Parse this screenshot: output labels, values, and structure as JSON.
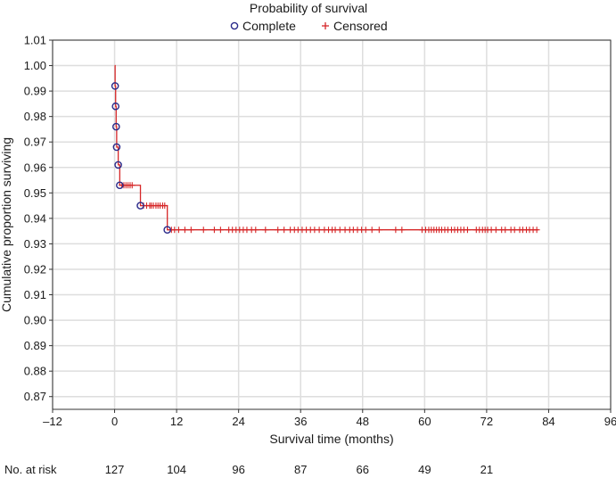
{
  "chart_data": {
    "type": "line",
    "title": "Probability of survival",
    "xlabel": "Survival time (months)",
    "ylabel": "Cumulative proportion surviving",
    "xlim": [
      -12,
      96
    ],
    "ylim": [
      0.865,
      1.01
    ],
    "x_ticks": [
      -12,
      0,
      12,
      24,
      36,
      48,
      60,
      72,
      84,
      96
    ],
    "x_tick_labels": [
      "–12",
      "0",
      "12",
      "24",
      "36",
      "48",
      "60",
      "72",
      "84",
      "96"
    ],
    "y_ticks": [
      0.87,
      0.88,
      0.89,
      0.9,
      0.91,
      0.92,
      0.93,
      0.94,
      0.95,
      0.96,
      0.97,
      0.98,
      0.99,
      1.0,
      1.01
    ],
    "y_tick_labels": [
      "0.87",
      "0.88",
      "0.89",
      "0.90",
      "0.91",
      "0.92",
      "0.93",
      "0.94",
      "0.95",
      "0.96",
      "0.97",
      "0.98",
      "0.99",
      "1.00",
      "1.01"
    ],
    "grid": true,
    "legend": {
      "position": "top",
      "entries": [
        {
          "label": "Complete",
          "marker": "circle"
        },
        {
          "label": "Censored",
          "marker": "plus"
        }
      ]
    },
    "series": [
      {
        "name": "Survival curve",
        "step": true,
        "color": "#d62728",
        "x": [
          0,
          0.1,
          0.2,
          0.3,
          0.4,
          0.7,
          1.0,
          5.0,
          10.2,
          82
        ],
        "y": [
          1.0,
          0.992,
          0.984,
          0.976,
          0.968,
          0.961,
          0.953,
          0.945,
          0.9355,
          0.9355
        ]
      },
      {
        "name": "Complete",
        "marker": "circle",
        "color": "#2a2a8a",
        "x": [
          0.1,
          0.2,
          0.3,
          0.4,
          0.7,
          1.0,
          5.0,
          10.2
        ],
        "y": [
          0.992,
          0.984,
          0.976,
          0.968,
          0.961,
          0.953,
          0.945,
          0.9355
        ]
      },
      {
        "name": "Censored",
        "marker": "plus",
        "color": "#d62728",
        "points": [
          {
            "y": 0.953,
            "x": [
              1.4,
              1.8,
              2.2,
              2.6,
              3.0,
              3.4
            ]
          },
          {
            "y": 0.945,
            "x": [
              5.6,
              6.2,
              6.8,
              7.1,
              7.5,
              8.0,
              8.4,
              8.8,
              9.3,
              9.7
            ]
          },
          {
            "y": 0.9355,
            "x": [
              11.0,
              11.6,
              12.4,
              13.6,
              14.8,
              17.2,
              19.3,
              20.5,
              22.1,
              22.8,
              23.5,
              24.2,
              24.9,
              25.6,
              26.5,
              27.3,
              29.2,
              31.6,
              32.8,
              34.0,
              34.8,
              35.5,
              36.3,
              37.1,
              37.9,
              38.7,
              39.6,
              40.6,
              41.4,
              42.1,
              42.7,
              43.6,
              44.6,
              45.5,
              46.2,
              47.0,
              47.8,
              48.6,
              49.8,
              51.2,
              54.4,
              55.6,
              59.5,
              60.2,
              60.8,
              61.3,
              61.8,
              62.3,
              62.8,
              63.3,
              63.9,
              64.5,
              65.2,
              65.8,
              66.4,
              67.0,
              67.6,
              68.3,
              70.0,
              70.6,
              71.2,
              71.7,
              72.2,
              72.9,
              73.8,
              74.9,
              75.6,
              76.7,
              77.4,
              78.4,
              79.0,
              79.7,
              80.3,
              81.0,
              81.7
            ]
          }
        ]
      }
    ]
  },
  "risk_table": {
    "label": "No. at risk",
    "times": [
      0,
      12,
      24,
      36,
      48,
      60,
      72
    ],
    "counts": [
      "127",
      "104",
      "96",
      "87",
      "66",
      "49",
      "21"
    ]
  },
  "colors": {
    "curve": "#d62728",
    "complete_marker": "#2a2a8a",
    "grid": "#dedede",
    "axis": "#333333"
  }
}
